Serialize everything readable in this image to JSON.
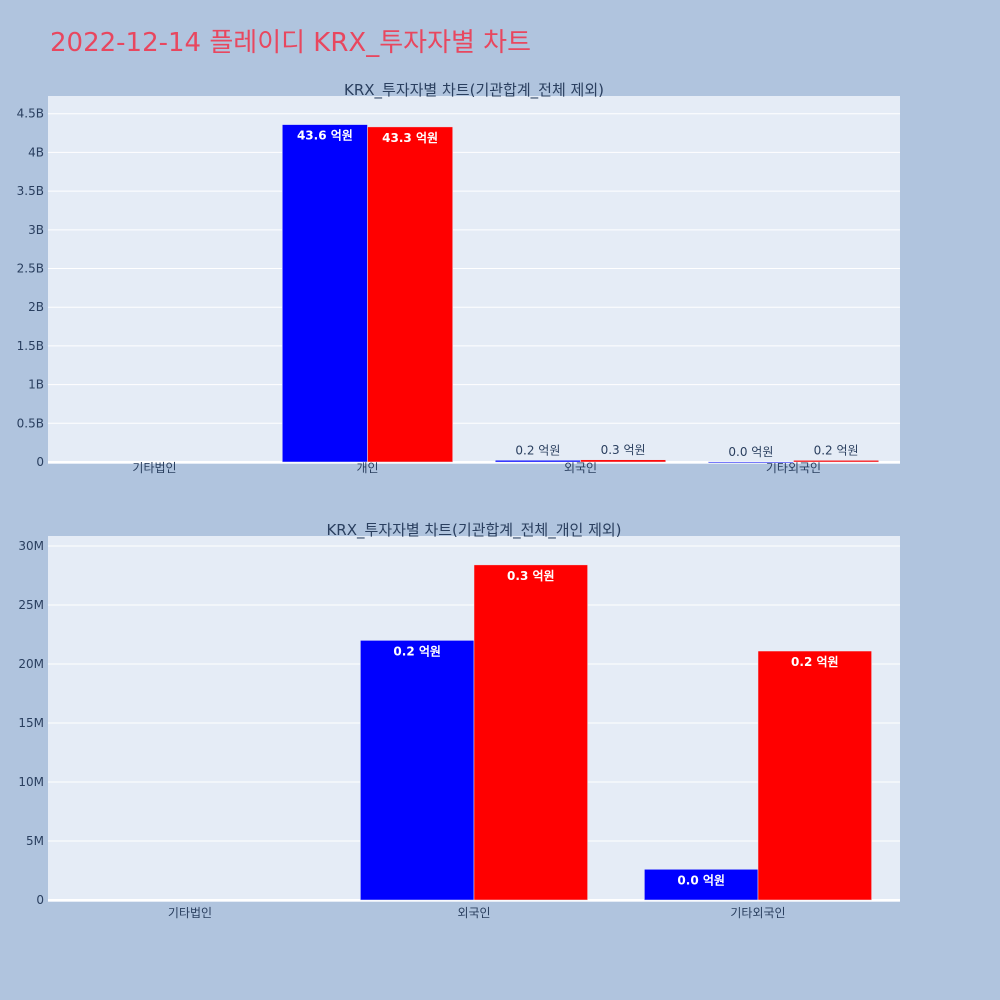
{
  "page": {
    "title": "2022-12-14 플레이디 KRX_투자자별 차트",
    "title_color": "#e8475f",
    "background": "#b0c4de",
    "plot_background": "#e5ecf6"
  },
  "chart_data": [
    {
      "type": "bar",
      "title": "KRX_투자자별 차트(기관합계_전체 제외)",
      "categories": [
        "기타법인",
        "개인",
        "외국인",
        "기타외국인"
      ],
      "ylim": [
        0,
        4600000000
      ],
      "yticks": [
        0,
        500000000,
        1000000000,
        1500000000,
        2000000000,
        2500000000,
        3000000000,
        3500000000,
        4000000000,
        4500000000
      ],
      "ytick_labels": [
        "0",
        "0.5B",
        "1B",
        "1.5B",
        "2B",
        "2.5B",
        "3B",
        "3.5B",
        "4B",
        "4.5B"
      ],
      "grid": true,
      "series": [
        {
          "color": "#0000ff",
          "values": [
            0,
            4360000000,
            22000000,
            2600000
          ],
          "labels": [
            "",
            "43.6 억원",
            "0.2 억원",
            "0.0 억원"
          ]
        },
        {
          "color": "#ff0000",
          "values": [
            0,
            4330000000,
            28400000,
            21100000
          ],
          "labels": [
            "",
            "43.3 억원",
            "0.3 억원",
            "0.2 억원"
          ]
        }
      ]
    },
    {
      "type": "bar",
      "title": "KRX_투자자별 차트(기관합계_전체_개인 제외)",
      "categories": [
        "기타법인",
        "외국인",
        "기타외국인"
      ],
      "ylim": [
        0,
        30000000
      ],
      "yticks": [
        0,
        5000000,
        10000000,
        15000000,
        20000000,
        25000000,
        30000000
      ],
      "ytick_labels": [
        "0",
        "5M",
        "10M",
        "15M",
        "20M",
        "25M",
        "30M"
      ],
      "grid": true,
      "series": [
        {
          "color": "#0000ff",
          "values": [
            0,
            22000000,
            2600000
          ],
          "labels": [
            "",
            "0.2 억원",
            "0.0 억원"
          ]
        },
        {
          "color": "#ff0000",
          "values": [
            0,
            28400000,
            21100000
          ],
          "labels": [
            "",
            "0.3 억원",
            "0.2 억원"
          ]
        }
      ]
    }
  ]
}
